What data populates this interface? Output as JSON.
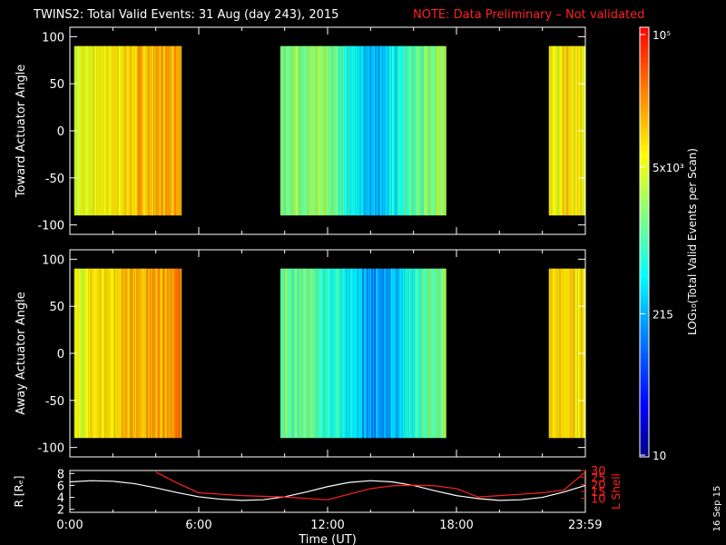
{
  "title": "TWINS2: Total Valid Events: 31 Aug (day 243), 2015",
  "note": "NOTE: Data Preliminary – Not validated",
  "date_stamp": "16 Sep 15",
  "colors": {
    "note": "#ff2020",
    "axes": "#ffffff",
    "background": "#000000",
    "r_line": "#ffffff",
    "lshell_line": "#ff2020"
  },
  "chart_data": [
    {
      "type": "heatmap",
      "panel": "toward",
      "ylabel": "Toward Actuator Angle",
      "ylim": [
        -110,
        110
      ],
      "yticks": [
        100,
        50,
        0,
        -50,
        -100
      ],
      "xlim_hours": [
        0,
        24
      ],
      "data_segments_hours": [
        [
          0.2,
          5.2
        ],
        [
          9.8,
          17.5
        ],
        [
          22.3,
          23.99
        ]
      ],
      "angle_range": [
        -90,
        90
      ],
      "colorbar_levels_by_segment": [
        "high (~5e3-1e4)",
        "mixed (215-5e3)",
        "high (~5e3-1e4)"
      ]
    },
    {
      "type": "heatmap",
      "panel": "away",
      "ylabel": "Away Actuator Angle",
      "ylim": [
        -110,
        110
      ],
      "yticks": [
        100,
        50,
        0,
        -50,
        -100
      ],
      "xlim_hours": [
        0,
        24
      ],
      "data_segments_hours": [
        [
          0.2,
          5.2
        ],
        [
          9.8,
          17.5
        ],
        [
          22.3,
          23.99
        ]
      ],
      "angle_range": [
        -90,
        90
      ]
    },
    {
      "type": "line",
      "panel": "orbit",
      "xlabel": "Time (UT)",
      "x_ticks": [
        "0:00",
        "6:00",
        "12:00",
        "18:00",
        "23:59"
      ],
      "x_hours": [
        0,
        1,
        2,
        3,
        4,
        5,
        6,
        7,
        8,
        9,
        10,
        11,
        12,
        13,
        14,
        15,
        16,
        17,
        18,
        19,
        20,
        21,
        22,
        23,
        24
      ],
      "series": [
        {
          "name": "R [Rₑ]",
          "axis": "left",
          "ylim": [
            1.5,
            8.5
          ],
          "yticks": [
            2,
            4,
            6,
            8
          ],
          "values": [
            6.6,
            6.8,
            6.7,
            6.3,
            5.6,
            4.8,
            4.1,
            3.7,
            3.5,
            3.6,
            4.1,
            4.9,
            5.8,
            6.5,
            6.8,
            6.6,
            6.0,
            5.1,
            4.3,
            3.8,
            3.5,
            3.6,
            4.0,
            4.9,
            6.0
          ]
        },
        {
          "name": "L Shell",
          "axis": "right",
          "ylim": [
            0,
            30
          ],
          "yticks": [
            10,
            15,
            20,
            25,
            30
          ],
          "values": [
            null,
            null,
            null,
            null,
            29,
            21,
            14,
            13,
            12,
            11.5,
            11,
            10,
            9,
            13,
            17,
            19,
            19.5,
            19,
            17,
            11,
            12,
            13,
            14,
            16,
            29
          ]
        }
      ]
    }
  ],
  "colorbar": {
    "label": "LOG₁₀(Total Valid Events per Scan)",
    "tick_labels": [
      "10⁵",
      "5x10³",
      "215",
      "10"
    ],
    "tick_values": [
      100000,
      5000,
      215,
      10
    ],
    "scale": "log"
  },
  "labels": {
    "toward_ylabel": "Toward Actuator Angle",
    "away_ylabel": "Away Actuator Angle",
    "xlabel": "Time (UT)",
    "r_label": "R [Rₑ]",
    "lshell_label": "L Shell"
  }
}
